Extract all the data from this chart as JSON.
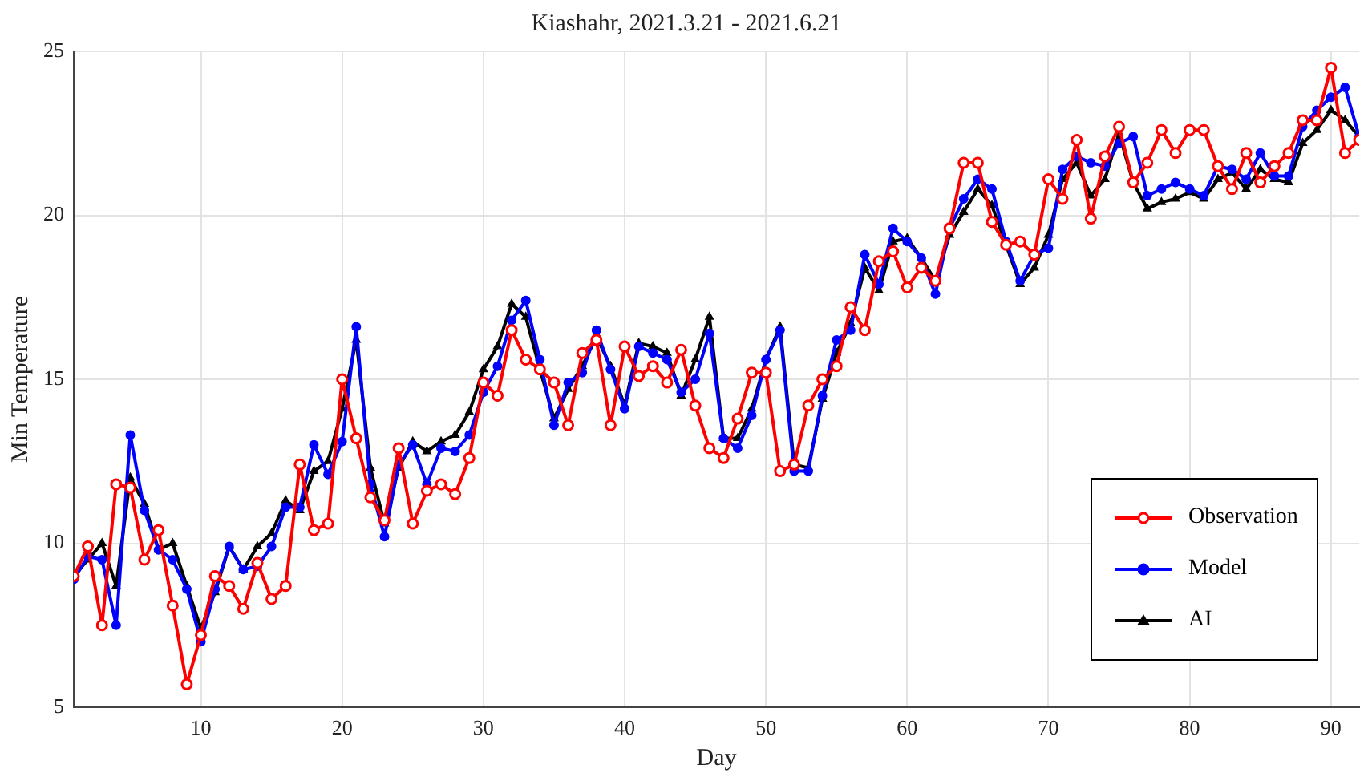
{
  "chart_data": {
    "type": "line",
    "title": "Kiashahr, 2021.3.21 - 2021.6.21",
    "xlabel": "Day",
    "ylabel": "Min Temperature",
    "x": [
      1,
      2,
      3,
      4,
      5,
      6,
      7,
      8,
      9,
      10,
      11,
      12,
      13,
      14,
      15,
      16,
      17,
      18,
      19,
      20,
      21,
      22,
      23,
      24,
      25,
      26,
      27,
      28,
      29,
      30,
      31,
      32,
      33,
      34,
      35,
      36,
      37,
      38,
      39,
      40,
      41,
      42,
      43,
      44,
      45,
      46,
      47,
      48,
      49,
      50,
      51,
      52,
      53,
      54,
      55,
      56,
      57,
      58,
      59,
      60,
      61,
      62,
      63,
      64,
      65,
      66,
      67,
      68,
      69,
      70,
      71,
      72,
      73,
      74,
      75,
      76,
      77,
      78,
      79,
      80,
      81,
      82,
      83,
      84,
      85,
      86,
      87,
      88,
      89,
      90,
      91,
      92
    ],
    "series": [
      {
        "name": "Observation",
        "color": "#ff0000",
        "marker": "circle",
        "values": [
          9.0,
          9.9,
          7.5,
          11.8,
          11.7,
          9.5,
          10.4,
          8.1,
          5.7,
          7.2,
          9.0,
          8.7,
          8.0,
          9.4,
          8.3,
          8.7,
          12.4,
          10.4,
          10.6,
          15.0,
          13.2,
          11.4,
          10.7,
          12.9,
          10.6,
          11.6,
          11.8,
          11.5,
          12.6,
          14.9,
          14.5,
          16.5,
          15.6,
          15.3,
          14.9,
          13.6,
          15.8,
          16.2,
          13.6,
          16.0,
          15.1,
          15.4,
          14.9,
          15.9,
          14.2,
          12.9,
          12.6,
          13.8,
          15.2,
          15.2,
          12.2,
          12.4,
          14.2,
          15.0,
          15.4,
          17.2,
          16.5,
          18.6,
          18.9,
          17.8,
          18.4,
          18.0,
          19.6,
          21.6,
          21.6,
          19.8,
          19.1,
          19.2,
          18.8,
          21.1,
          20.5,
          22.3,
          19.9,
          21.8,
          22.7,
          21.0,
          21.6,
          22.6,
          21.9,
          22.6,
          22.6,
          21.5,
          20.8,
          21.9,
          21.0,
          21.5,
          21.9,
          22.9,
          22.9,
          24.5,
          21.9,
          22.3
        ]
      },
      {
        "name": "Model",
        "color": "#0000ff",
        "marker": "circle",
        "values": [
          8.9,
          9.6,
          9.5,
          7.5,
          13.3,
          11.0,
          9.8,
          9.5,
          8.6,
          7.0,
          8.6,
          9.9,
          9.2,
          9.3,
          9.9,
          11.1,
          11.1,
          13.0,
          12.1,
          13.1,
          16.6,
          11.8,
          10.2,
          12.4,
          13.0,
          11.8,
          12.9,
          12.8,
          13.3,
          14.6,
          15.4,
          16.8,
          17.4,
          15.6,
          13.6,
          14.9,
          15.2,
          16.5,
          15.3,
          14.1,
          16.0,
          15.8,
          15.6,
          14.6,
          15.0,
          16.4,
          13.2,
          12.9,
          13.9,
          15.6,
          16.5,
          12.2,
          12.2,
          14.5,
          16.2,
          16.5,
          18.8,
          17.9,
          19.6,
          19.2,
          18.7,
          17.6,
          19.6,
          20.5,
          21.1,
          20.8,
          19.2,
          18.0,
          18.8,
          19.0,
          21.4,
          21.8,
          21.6,
          21.5,
          22.2,
          22.4,
          20.6,
          20.8,
          21.0,
          20.8,
          20.6,
          21.5,
          21.4,
          21.1,
          21.9,
          21.2,
          21.2,
          22.7,
          23.2,
          23.6,
          23.9,
          22.4
        ]
      },
      {
        "name": "AI",
        "color": "#000000",
        "marker": "triangle",
        "values": [
          9.0,
          9.5,
          10.0,
          8.7,
          12.0,
          11.2,
          9.8,
          10.0,
          8.7,
          7.4,
          8.5,
          9.9,
          9.2,
          9.9,
          10.3,
          11.3,
          11.0,
          12.2,
          12.5,
          14.1,
          16.2,
          12.3,
          10.6,
          12.3,
          13.1,
          12.8,
          13.1,
          13.3,
          14.0,
          15.3,
          16.0,
          17.3,
          16.9,
          15.3,
          13.8,
          14.7,
          15.4,
          16.3,
          15.4,
          14.2,
          16.1,
          16.0,
          15.8,
          14.5,
          15.6,
          16.9,
          13.2,
          13.2,
          14.1,
          15.6,
          16.6,
          12.4,
          12.3,
          14.4,
          15.8,
          16.7,
          18.4,
          17.7,
          19.2,
          19.3,
          18.7,
          18.0,
          19.4,
          20.1,
          20.8,
          20.3,
          19.1,
          17.9,
          18.4,
          19.4,
          21.1,
          21.6,
          20.6,
          21.1,
          22.5,
          21.0,
          20.2,
          20.4,
          20.5,
          20.7,
          20.5,
          21.1,
          21.3,
          20.8,
          21.4,
          21.1,
          21.0,
          22.2,
          22.6,
          23.2,
          22.9,
          22.4
        ]
      }
    ],
    "xlim": [
      1,
      92
    ],
    "xticks": [
      10,
      20,
      30,
      40,
      50,
      60,
      70,
      80,
      90
    ],
    "ylim": [
      5,
      25
    ],
    "yticks": [
      5,
      10,
      15,
      20,
      25
    ],
    "grid": true,
    "legend": "bottom right",
    "line_style": "solid"
  }
}
